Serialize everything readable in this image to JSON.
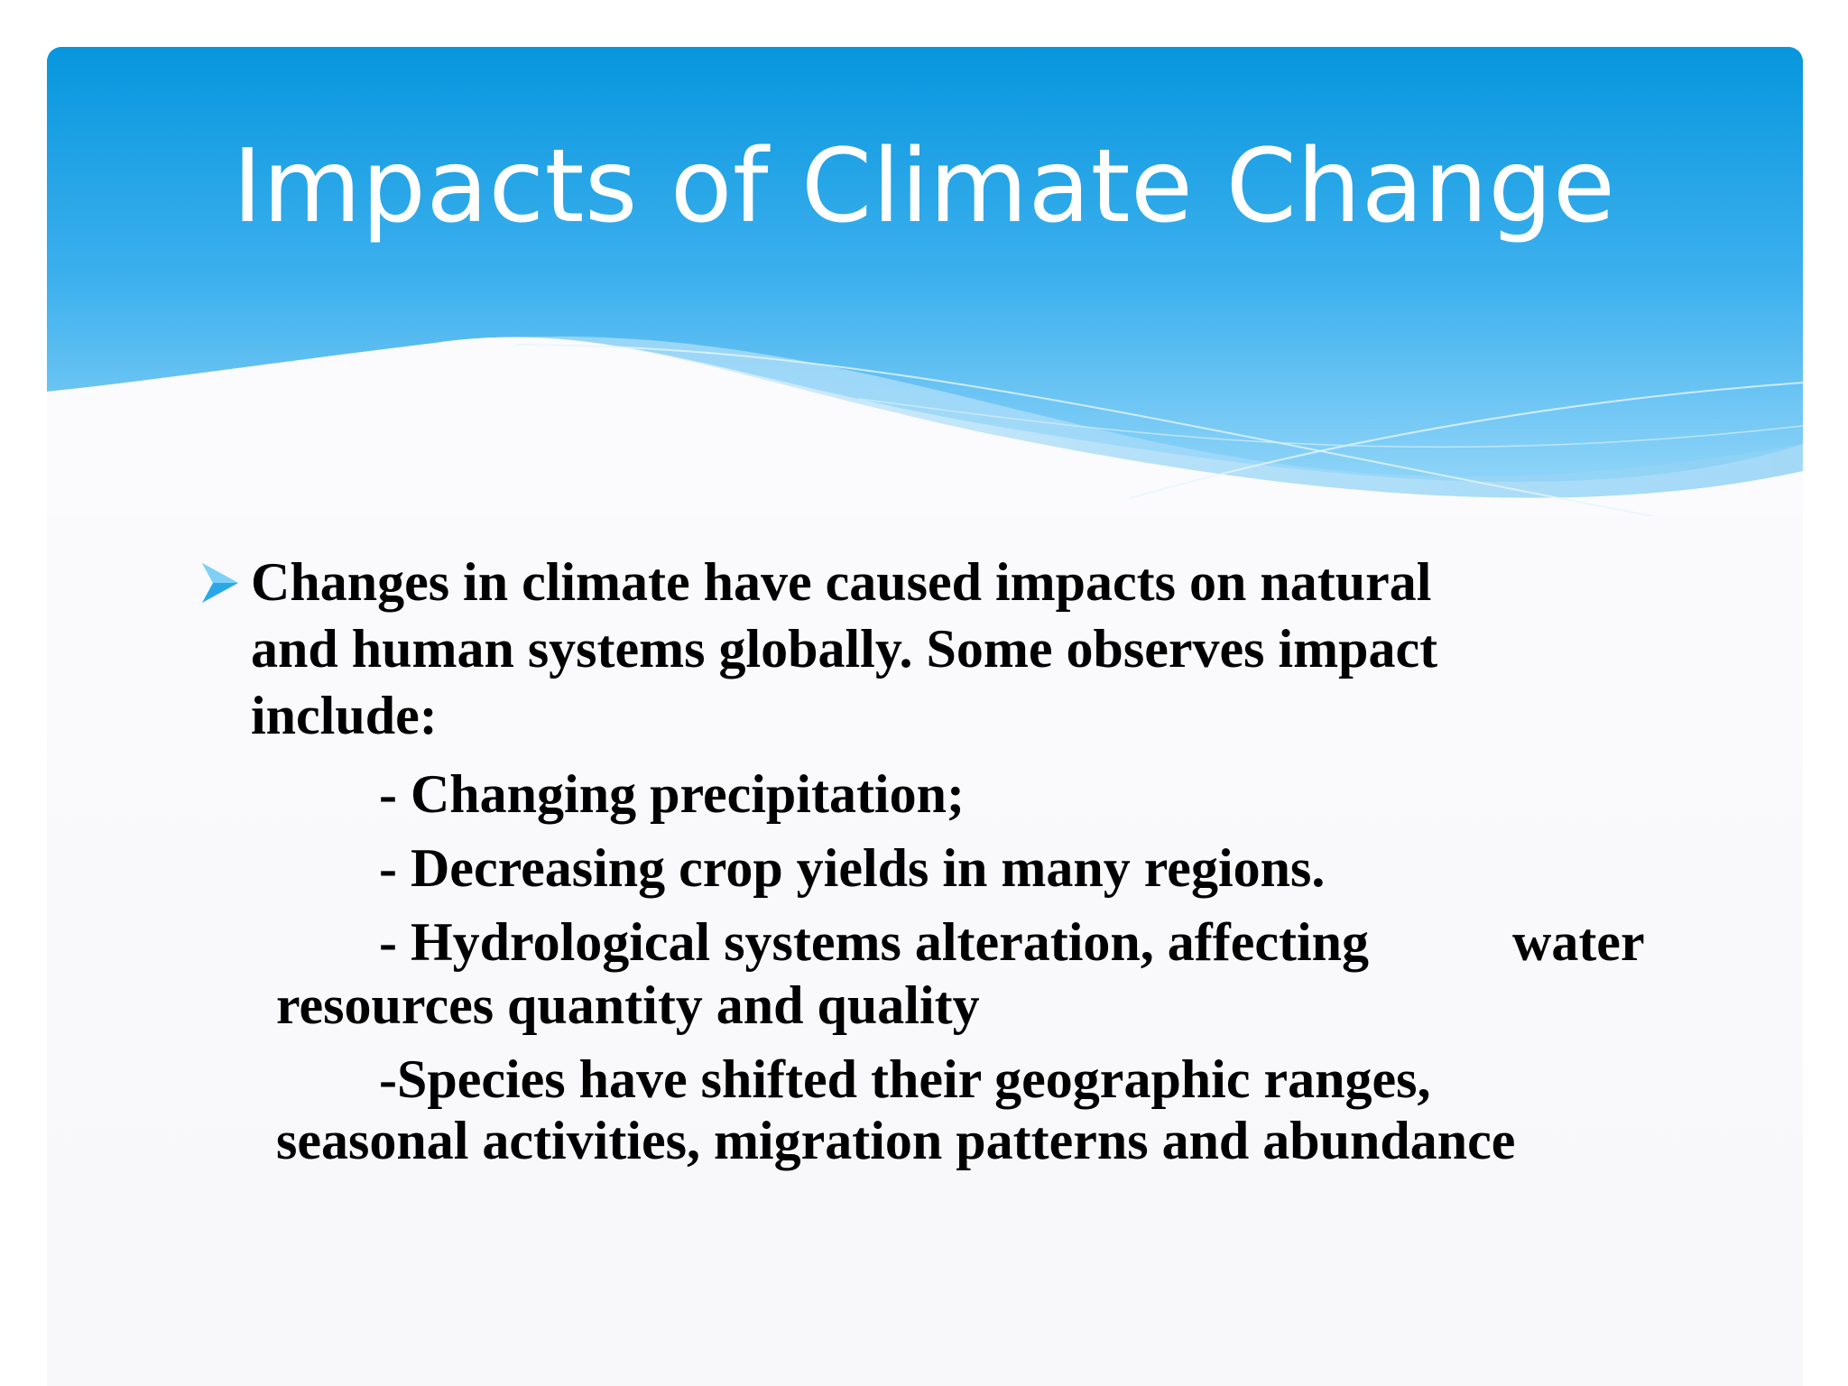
{
  "slide": {
    "title": "Impacts of Climate Change",
    "bullet": {
      "icon": "arrow-bullet-icon",
      "text_lines": [
        "Changes in climate have caused impacts on natural",
        "and human systems globally. Some observes impact",
        "include:"
      ]
    },
    "sub_items": [
      "- Changing precipitation;",
      "- Decreasing crop yields in many regions.",
      "- Hydrological systems alteration, affecting",
      "water",
      "resources quantity and quality",
      "-Species have shifted their geographic ranges,",
      "seasonal activities, migration patterns and abundance"
    ]
  },
  "colors": {
    "header_top": "#0796de",
    "header_bottom": "#6cc7f5",
    "wave_light": "#a9dcf8",
    "bullet_accent": "#29a8e8",
    "text": "#000000"
  }
}
